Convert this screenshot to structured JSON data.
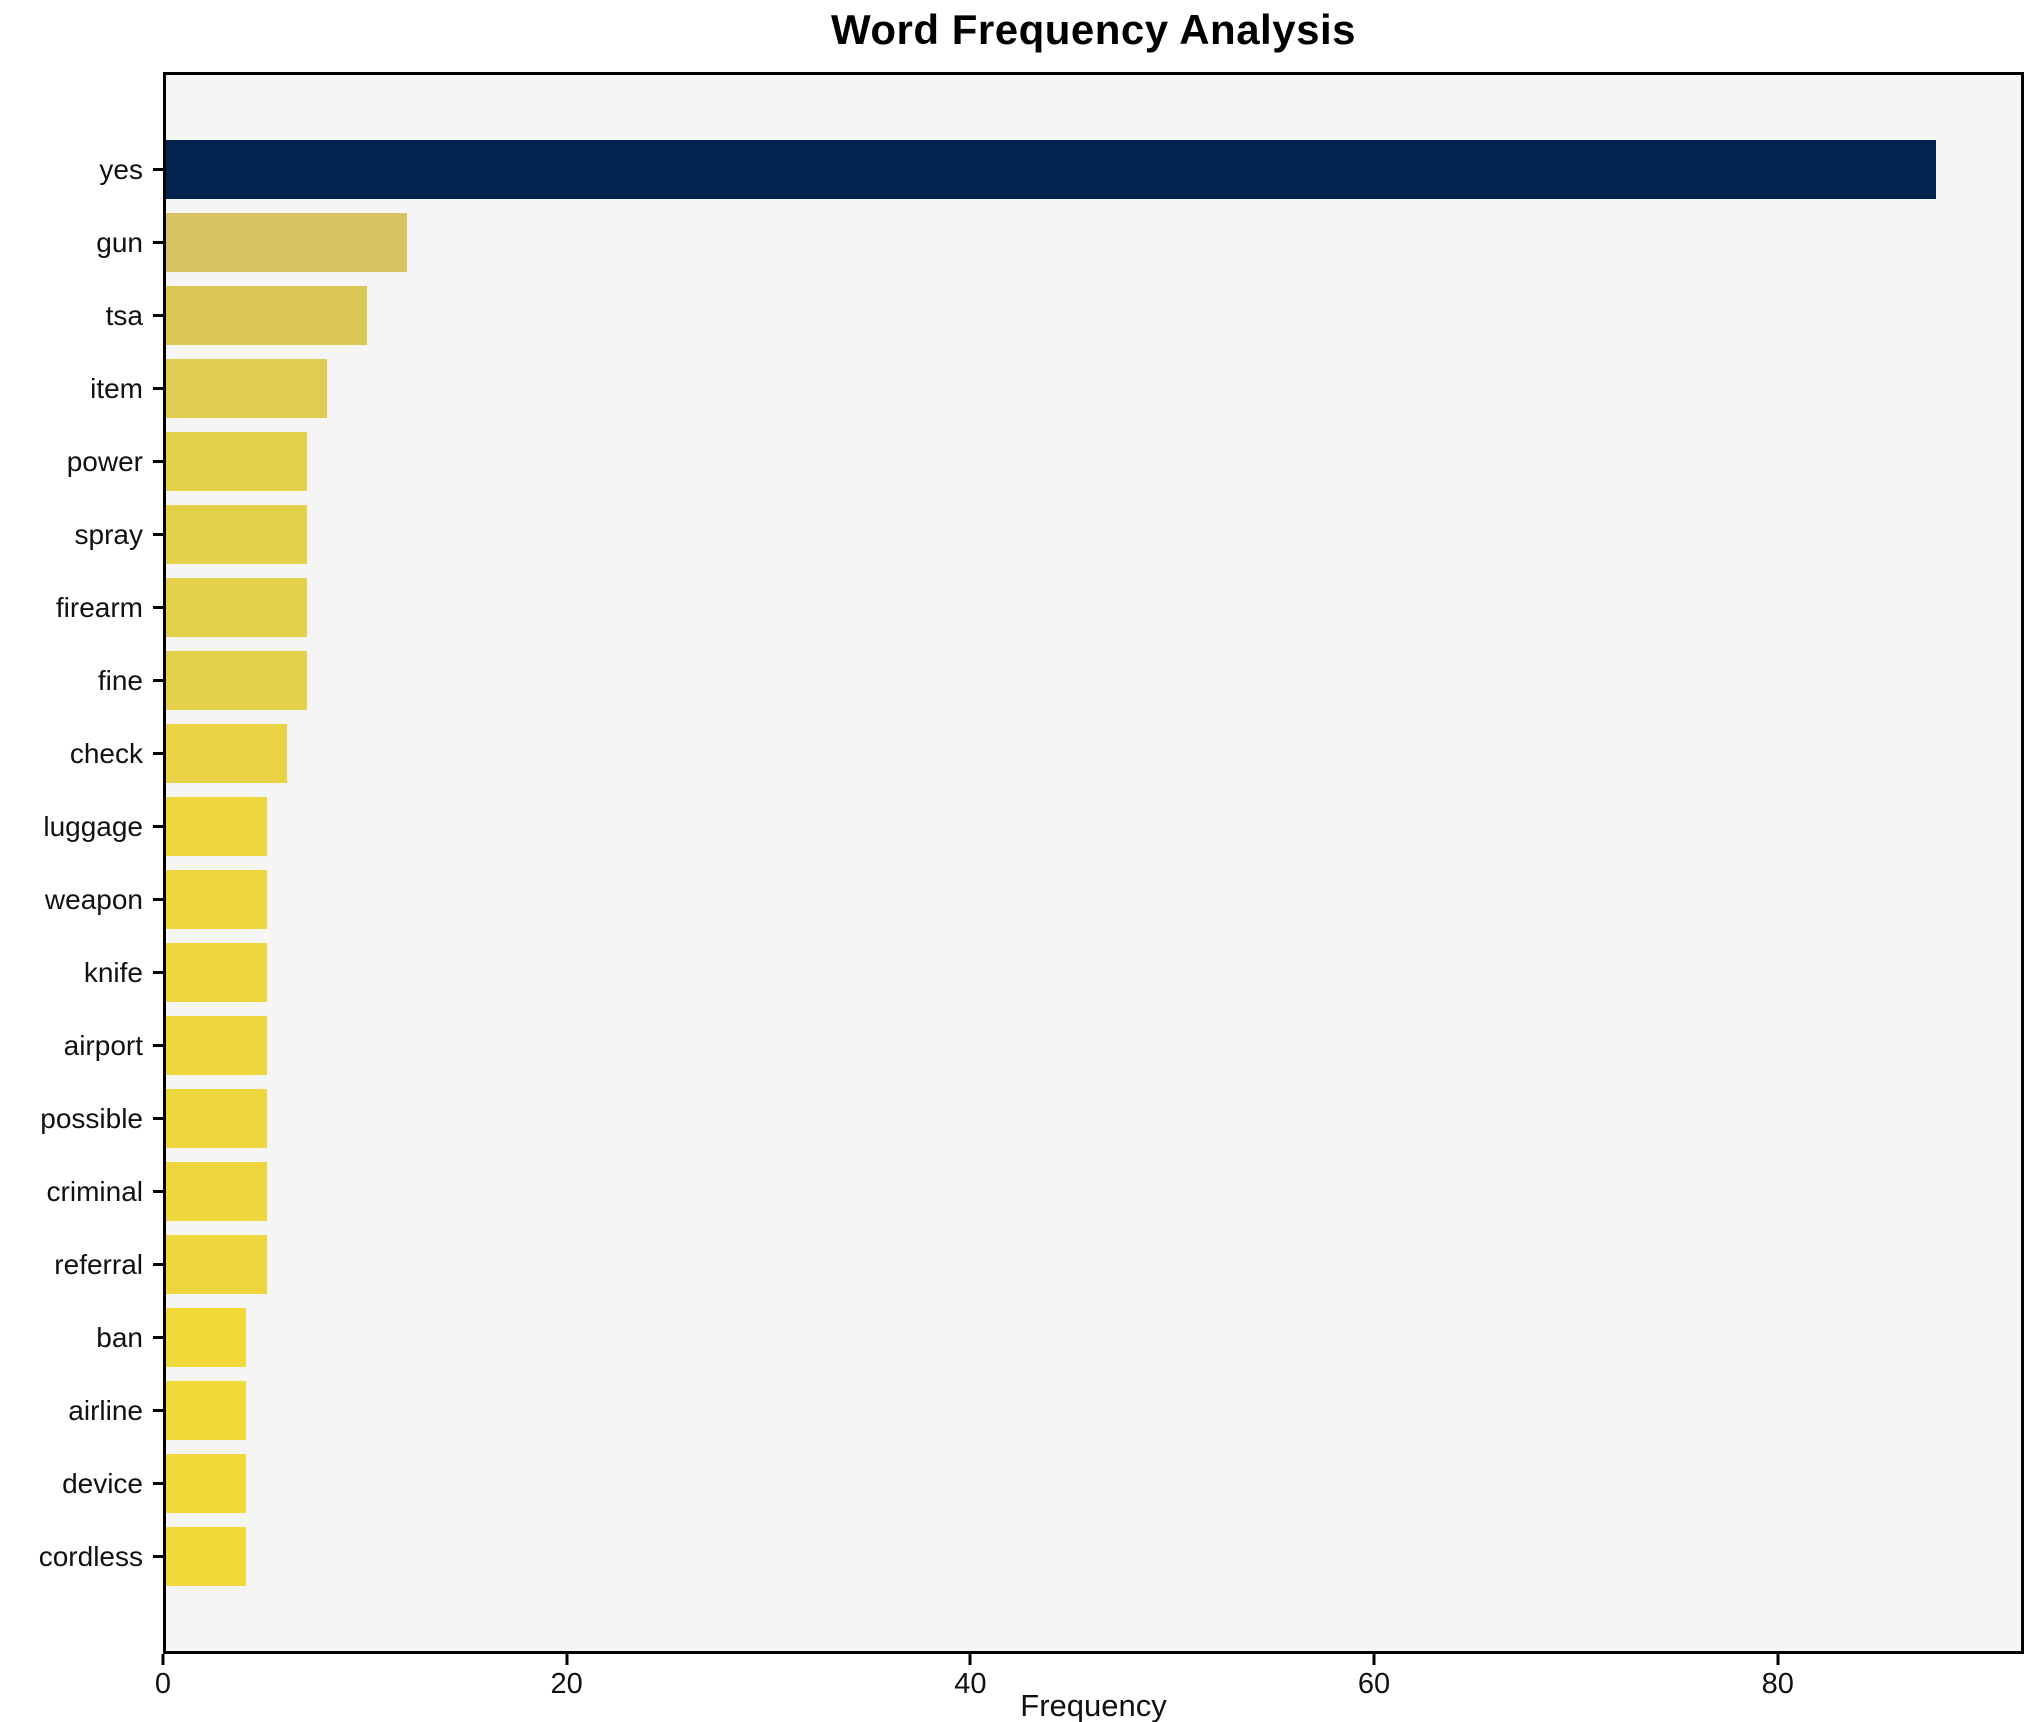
{
  "chart_data": {
    "type": "bar",
    "orientation": "horizontal",
    "title": "Word Frequency Analysis",
    "xlabel": "Frequency",
    "ylabel": "",
    "categories": [
      "yes",
      "gun",
      "tsa",
      "item",
      "power",
      "spray",
      "firearm",
      "fine",
      "check",
      "luggage",
      "weapon",
      "knife",
      "airport",
      "possible",
      "criminal",
      "referral",
      "ban",
      "airline",
      "device",
      "cordless"
    ],
    "values": [
      88,
      12,
      10,
      8,
      7,
      7,
      7,
      7,
      6,
      5,
      5,
      5,
      5,
      5,
      5,
      5,
      4,
      4,
      4,
      4
    ],
    "bar_colors": [
      "#02234e",
      "#d5c35f",
      "#dac754",
      "#e0cc50",
      "#e5d04a",
      "#e5d04a",
      "#e5d04a",
      "#e5d04a",
      "#ead345",
      "#eed63f",
      "#eed63f",
      "#eed63f",
      "#eed63f",
      "#eed63f",
      "#eed63f",
      "#eed63f",
      "#f2d93a",
      "#f2d93a",
      "#f2d93a",
      "#f2d93a"
    ],
    "xlim": [
      0,
      92.2
    ],
    "x_ticks": [
      0,
      20,
      40,
      60,
      80
    ],
    "legend": "none",
    "grid": "off",
    "plot_bg": "#f5f5f6",
    "figure_bg": "#ffffff",
    "axis_color": "#000000",
    "bar_height_fraction": 0.81
  }
}
